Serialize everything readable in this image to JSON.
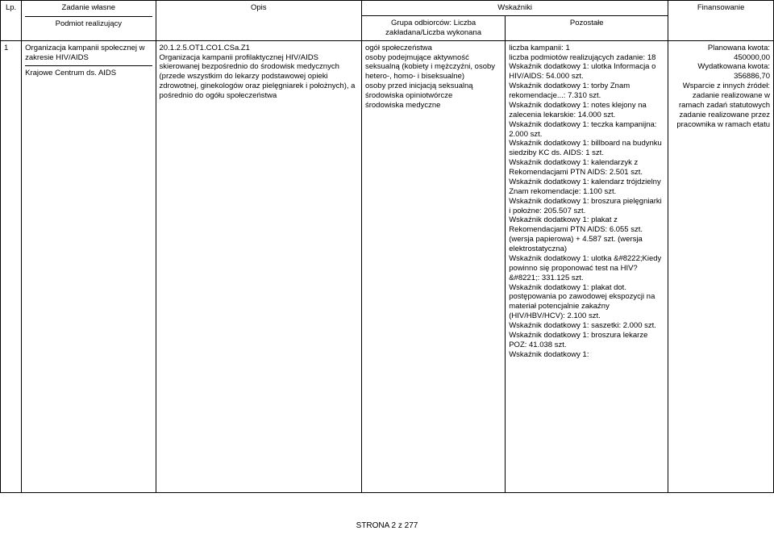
{
  "headers": {
    "lp": "Lp.",
    "task": "Zadanie własne",
    "subject": "Podmiot realizujący",
    "desc": "Opis",
    "indicators": "Wskaźniki",
    "group": "Grupa odbiorców: Liczba zakładana/Liczba wykonana",
    "other": "Pozostałe",
    "fin": "Finansowanie"
  },
  "row": {
    "lp": "1",
    "task_top": "Organizacja kampanii społecznej w zakresie HIV/AIDS",
    "task_bottom": "Krajowe Centrum ds. AIDS",
    "desc": "20.1.2.5.OT1.CO1.CSa.Z1\nOrganizacja kampanii profilaktycznej HIV/AIDS skierowanej bezpośrednio do środowisk medycznych (przede wszystkim do lekarzy podstawowej opieki zdrowotnej, ginekologów oraz pielęgniarek i położnych), a pośrednio do ogółu społeczeństwa",
    "group": "ogół społeczeństwa\nosoby podejmujące aktywność seksualną (kobiety i mężczyźni, osoby hetero-, homo- i biseksualne)\nosoby przed inicjacją seksualną\nśrodowiska opiniotwórcze\nśrodowiska medyczne",
    "other": "liczba kampanii: 1\nliczba podmiotów realizujących zadanie: 18\nWskaźnik dodatkowy 1: ulotka Informacja o HIV/AIDS: 54.000 szt.\nWskaźnik dodatkowy 1: torby Znam rekomendacje...: 7.310 szt.\nWskaźnik dodatkowy 1: notes klejony na zalecenia lekarskie: 14.000 szt.\nWskaźnik dodatkowy 1: teczka kampanijna: 2.000 szt.\nWskaźnik dodatkowy 1: billboard na budynku siedziby KC ds. AIDS: 1 szt.\nWskaźnik dodatkowy 1: kalendarzyk z Rekomendacjami PTN AIDS: 2.501 szt.\nWskaźnik dodatkowy 1: kalendarz trójdzielny Znam rekomendacje: 1.100 szt.\nWskaźnik dodatkowy 1: broszura pielęgniarki i położne: 205.507 szt.\nWskaźnik dodatkowy 1: plakat z Rekomendacjami PTN AIDS: 6.055 szt. (wersja papierowa) + 4.587 szt. (wersja elektrostatyczna)\nWskaźnik dodatkowy 1: ulotka &#8222;Kiedy powinno się proponować test na HIV?&#8221;: 331.125 szt.\nWskaźnik dodatkowy 1: plakat dot. postępowania po zawodowej ekspozycji na materiał potencjalnie zakaźny (HIV/HBV/HCV): 2.100 szt.\nWskaźnik dodatkowy 1: saszetki: 2.000 szt.\nWskaźnik dodatkowy 1: broszura lekarze POZ: 41.038 szt.\nWskaźnik dodatkowy 1:",
    "fin_l1": "Planowana kwota:",
    "fin_v1": "450000,00",
    "fin_l2": "Wydatkowana kwota:",
    "fin_v2": "356886,70",
    "fin_l3": "Wsparcie z innych źródeł:",
    "fin_l4": "zadanie realizowane w ramach zadań statutowych",
    "fin_l5": "zadanie realizowane przez pracownika w ramach etatu"
  },
  "footer": "STRONA 2 z 277"
}
